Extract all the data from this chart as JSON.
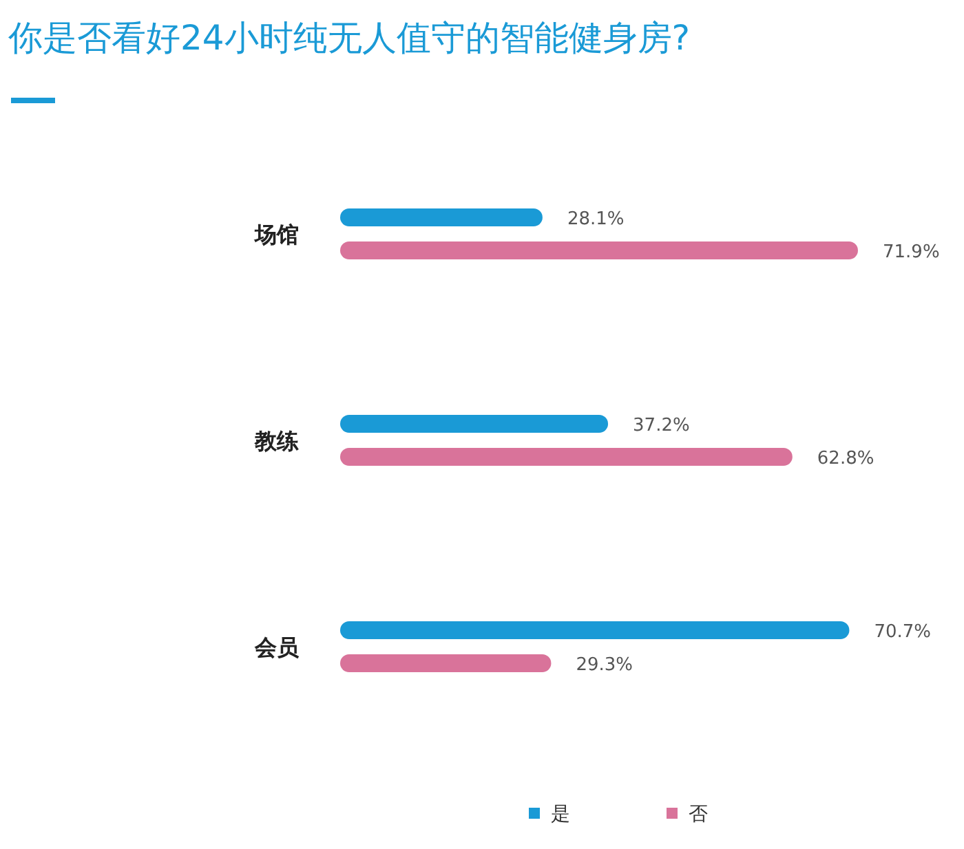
{
  "chart_data": {
    "type": "bar",
    "orientation": "horizontal",
    "title": "你是否看好24小时纯无人值守的智能健身房?",
    "categories": [
      "场馆",
      "教练",
      "会员"
    ],
    "series": [
      {
        "name": "是",
        "color": "#1a9ad6",
        "values": [
          28.1,
          37.2,
          70.7
        ],
        "value_labels": [
          "28.1%",
          "37.2%",
          "70.7%"
        ]
      },
      {
        "name": "否",
        "color": "#d9739a",
        "values": [
          71.9,
          62.8,
          29.3
        ],
        "value_labels": [
          "71.9%",
          "62.8%",
          "29.3%"
        ]
      }
    ],
    "legend": "bottom",
    "grid": false
  }
}
